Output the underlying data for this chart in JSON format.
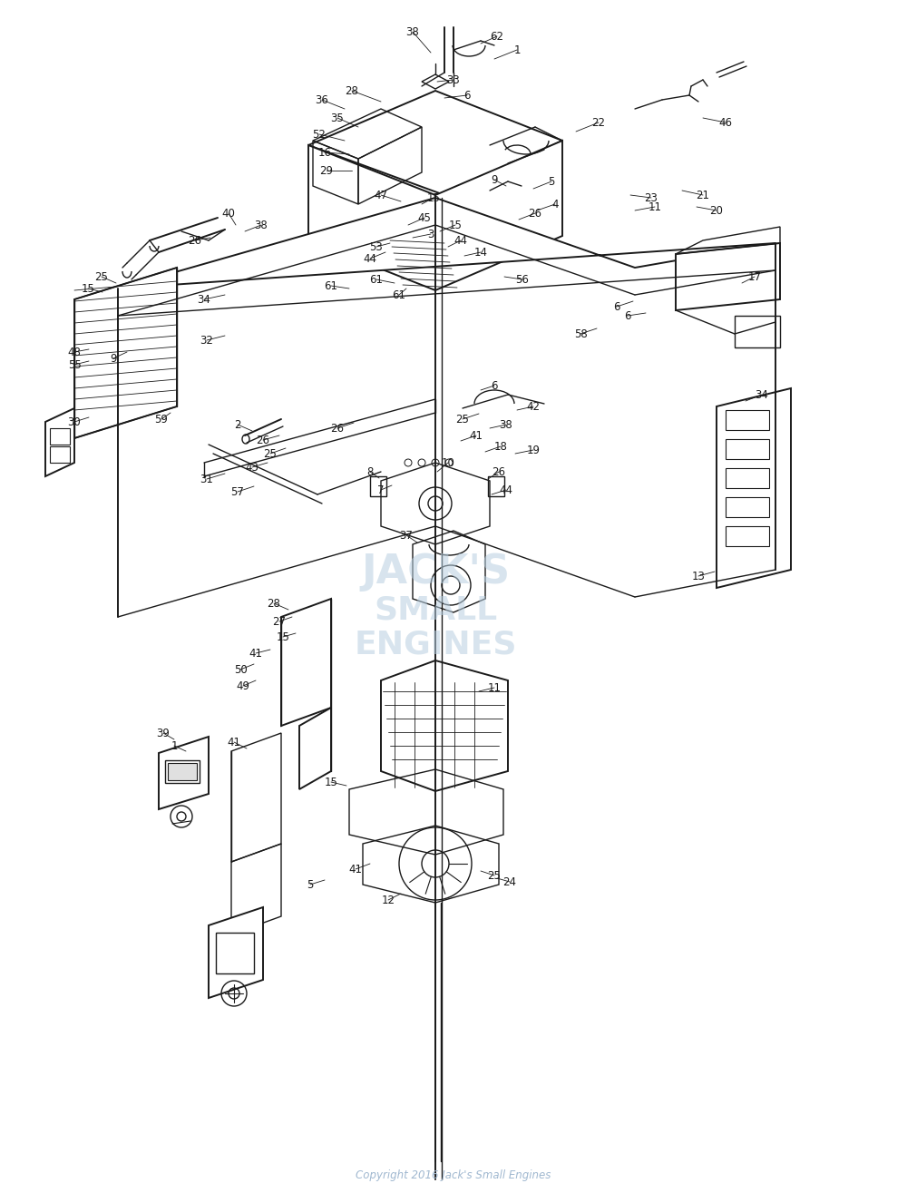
{
  "bg_color": "#ffffff",
  "line_color": "#1a1a1a",
  "label_color": "#1a1a1a",
  "watermark_color": "#b8cfe0",
  "watermark_text": "Copyright 2016 Jack's Small Engines",
  "figsize": [
    10.0,
    13.26
  ],
  "dpi": 100
}
